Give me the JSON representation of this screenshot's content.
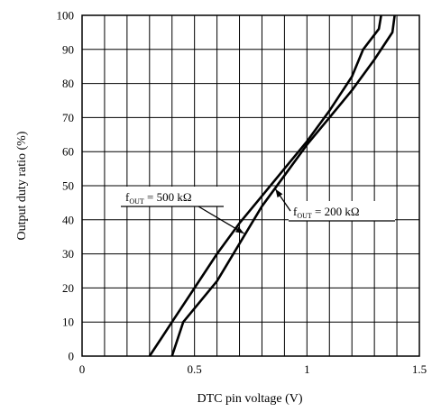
{
  "chart_data": {
    "type": "line",
    "xlabel": "DTC pin voltage  (V)",
    "ylabel": "Output duty ratio   (%)",
    "xlim": [
      0,
      1.5
    ],
    "ylim": [
      0,
      100
    ],
    "x_ticks": [
      0,
      0.5,
      1,
      1.5
    ],
    "x_tick_labels": [
      "0",
      "0.5",
      "1",
      "1.5"
    ],
    "x_grid_step": 0.1,
    "y_ticks": [
      0,
      10,
      20,
      30,
      40,
      50,
      60,
      70,
      80,
      90,
      100
    ],
    "y_tick_labels": [
      "0",
      "10",
      "20",
      "30",
      "40",
      "50",
      "60",
      "70",
      "80",
      "90",
      "100"
    ],
    "grid": true,
    "series": [
      {
        "name": "fOUT = 500 kΩ",
        "points": [
          [
            0.3,
            0
          ],
          [
            0.35,
            5
          ],
          [
            0.4,
            10
          ],
          [
            0.5,
            20
          ],
          [
            0.6,
            30
          ],
          [
            0.7,
            39
          ],
          [
            0.8,
            47
          ],
          [
            0.9,
            55
          ],
          [
            1.0,
            63
          ],
          [
            1.1,
            72
          ],
          [
            1.2,
            82
          ],
          [
            1.25,
            90
          ],
          [
            1.32,
            96
          ],
          [
            1.33,
            100
          ]
        ]
      },
      {
        "name": "fOUT = 200 kΩ",
        "points": [
          [
            0.4,
            0
          ],
          [
            0.45,
            10
          ],
          [
            0.6,
            22
          ],
          [
            0.7,
            33
          ],
          [
            0.8,
            44
          ],
          [
            0.9,
            53
          ],
          [
            1.0,
            62
          ],
          [
            1.1,
            70
          ],
          [
            1.2,
            78
          ],
          [
            1.3,
            87
          ],
          [
            1.38,
            95
          ],
          [
            1.39,
            100
          ]
        ]
      }
    ],
    "annotations": [
      {
        "base": "f",
        "subscript": "OUT",
        "rest": " = 500 kΩ",
        "arrow_to": [
          0.72,
          36
        ]
      },
      {
        "base": "f",
        "subscript": "OUT",
        "rest": " = 200 kΩ",
        "arrow_to": [
          0.86,
          49
        ]
      }
    ]
  }
}
